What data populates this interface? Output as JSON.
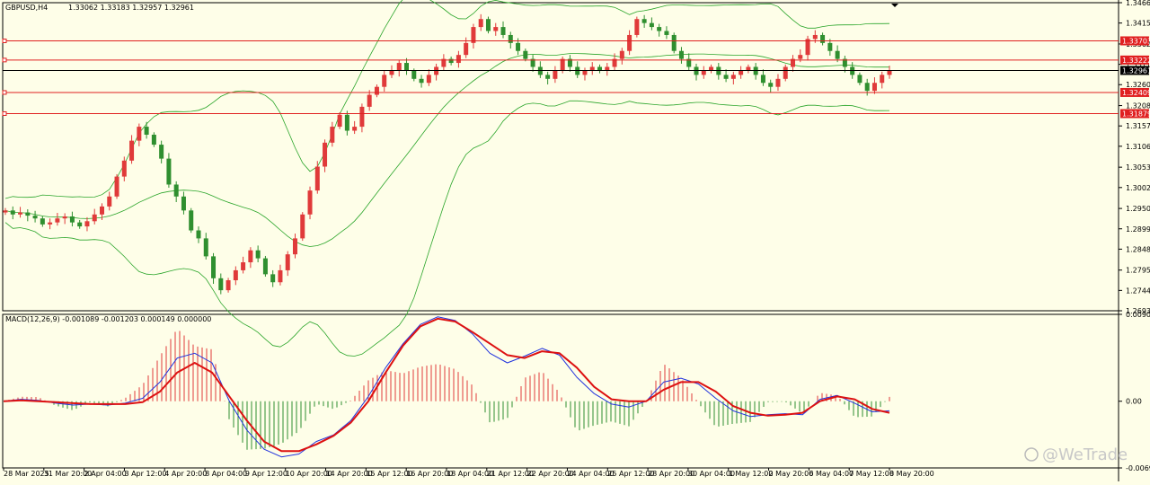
{
  "header": {
    "symbol": "GBPUSD,H4",
    "ohlc": "1.33062 1.33183 1.32957 1.32961"
  },
  "macd_label": "MACD(12,26,9) -0.001089 -0.001203 0.000149 0.000000",
  "watermark": "@WeTrade",
  "colors": {
    "background": "#fefee8",
    "bull_candle": "#e03a3a",
    "bear_candle": "#2f8f2f",
    "bollinger": "#2aa52a",
    "hline": "#e02020",
    "macd_line": "#2233dd",
    "signal_line": "#dd1111",
    "hist_pos": "#e03a3a",
    "hist_neg": "#2f8f2f"
  },
  "chart_data": [
    {
      "type": "candlestick",
      "title": "GBPUSD,H4",
      "ylim": [
        1.26935,
        1.3466
      ],
      "y_ticks": [
        "1.34660",
        "1.34150",
        "1.33625",
        "1.33115",
        "1.32605",
        "1.32080",
        "1.31570",
        "1.31060",
        "1.30535",
        "1.30025",
        "1.29500",
        "1.28990",
        "1.28480",
        "1.27955",
        "1.27445",
        "1.26935"
      ],
      "x_labels": [
        "28 Mar 2025",
        "31 Mar 20:00",
        "2 Apr 04:00",
        "3 Apr 12:00",
        "4 Apr 20:00",
        "8 Apr 04:00",
        "9 Apr 12:00",
        "10 Apr 20:00",
        "14 Apr 20:00",
        "15 Apr 12:00",
        "16 Apr 20:00",
        "18 Apr 04:00",
        "21 Apr 12:00",
        "22 Apr 20:00",
        "24 Apr 04:00",
        "25 Apr 12:00",
        "28 Apr 20:00",
        "30 Apr 04:00",
        "1 May 12:00",
        "2 May 20:00",
        "6 May 04:00",
        "7 May 12:00",
        "8 May 20:00"
      ],
      "current_price": "1.32961",
      "current_price_value": 1.32961,
      "horizontal_levels": [
        {
          "label": "1.33703",
          "value": 1.33703
        },
        {
          "label": "1.33222",
          "value": 1.33222
        },
        {
          "label": "1.32409",
          "value": 1.32409
        },
        {
          "label": "1.31879",
          "value": 1.31879
        }
      ],
      "close_path": [
        1.2945,
        1.2935,
        1.294,
        1.2932,
        1.2925,
        1.291,
        1.2915,
        1.2925,
        1.293,
        1.2915,
        1.2905,
        1.2918,
        1.2935,
        1.2955,
        1.298,
        1.303,
        1.307,
        1.312,
        1.3155,
        1.3135,
        1.311,
        1.3075,
        1.301,
        1.298,
        1.2945,
        1.2895,
        1.2875,
        1.283,
        1.2775,
        1.2745,
        1.277,
        1.2795,
        1.2815,
        1.2845,
        1.2825,
        1.2785,
        1.2765,
        1.2795,
        1.2835,
        1.2875,
        1.2935,
        1.2995,
        1.3055,
        1.3115,
        1.3155,
        1.3185,
        1.3145,
        1.3155,
        1.3205,
        1.3235,
        1.3255,
        1.3285,
        1.3295,
        1.3315,
        1.3295,
        1.3275,
        1.3265,
        1.3285,
        1.3305,
        1.3325,
        1.3315,
        1.3335,
        1.3365,
        1.3405,
        1.3425,
        1.3395,
        1.3405,
        1.3385,
        1.3365,
        1.3345,
        1.3325,
        1.3305,
        1.3285,
        1.3275,
        1.3295,
        1.3325,
        1.3305,
        1.3285,
        1.3295,
        1.3305,
        1.3295,
        1.3305,
        1.3325,
        1.3345,
        1.3385,
        1.3425,
        1.3415,
        1.3405,
        1.3395,
        1.3385,
        1.3345,
        1.3325,
        1.3305,
        1.3285,
        1.3295,
        1.3305,
        1.3285,
        1.3275,
        1.3285,
        1.3295,
        1.3305,
        1.3285,
        1.3265,
        1.3255,
        1.3275,
        1.3305,
        1.3325,
        1.3335,
        1.3375,
        1.3385,
        1.3365,
        1.3345,
        1.3325,
        1.3305,
        1.3285,
        1.3265,
        1.3245,
        1.3265,
        1.3285,
        1.3296
      ]
    },
    {
      "type": "macd",
      "title": "MACD(12,26,9) -0.001089 -0.001203 0.000149 0.000000",
      "ylim": [
        -0.006946,
        0.009048
      ],
      "y_ticks": [
        "0.009048",
        "0.00",
        "-0.006946"
      ],
      "macd_path": [
        0.0,
        0.0002,
        0.0001,
        -0.0002,
        -0.0004,
        -0.0003,
        -0.0004,
        -0.0002,
        0.0003,
        0.002,
        0.0045,
        0.005,
        0.004,
        0.0,
        -0.003,
        -0.005,
        -0.0058,
        -0.0055,
        -0.0042,
        -0.0035,
        -0.002,
        0.0005,
        0.0035,
        0.006,
        0.008,
        0.0088,
        0.0084,
        0.007,
        0.005,
        0.004,
        0.0047,
        0.0055,
        0.0048,
        0.0025,
        0.0008,
        -0.0003,
        -0.0006,
        0.0,
        0.002,
        0.0024,
        0.0018,
        0.0003,
        -0.001,
        -0.0016,
        -0.0014,
        -0.0013,
        -0.0014,
        0.0002,
        0.0006,
        -0.0002,
        -0.0011,
        -0.001
      ],
      "signal_path": [
        0.0,
        0.0001,
        0.0,
        -0.0001,
        -0.0002,
        -0.0003,
        -0.0003,
        -0.0003,
        -0.0001,
        0.001,
        0.003,
        0.004,
        0.003,
        0.0005,
        -0.002,
        -0.0042,
        -0.0052,
        -0.0052,
        -0.0045,
        -0.0036,
        -0.0022,
        0.0,
        0.003,
        0.0058,
        0.0078,
        0.0086,
        0.0083,
        0.0072,
        0.006,
        0.0048,
        0.0045,
        0.0052,
        0.005,
        0.0035,
        0.0015,
        0.0002,
        0.0,
        0.0,
        0.0012,
        0.002,
        0.002,
        0.001,
        -0.0005,
        -0.0012,
        -0.0015,
        -0.0014,
        -0.0012,
        0.0,
        0.0005,
        0.0002,
        -0.0008,
        -0.0012
      ]
    }
  ]
}
